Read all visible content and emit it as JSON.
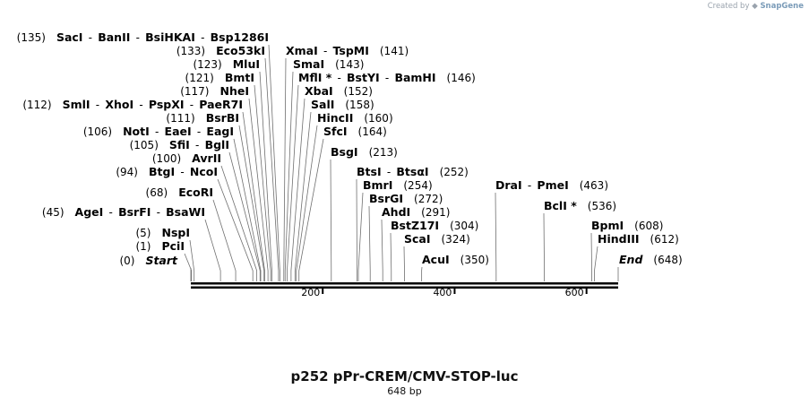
{
  "credit": {
    "prefix": "Created by",
    "brand": "SnapGene"
  },
  "title": "p252 pPr-CREM/CMV-STOP-luc",
  "subtitle": "648 bp",
  "map": {
    "length": 648,
    "ticks": [
      200,
      400,
      600
    ]
  },
  "features": [
    {
      "pos": 135,
      "names": [
        "SacI",
        "BanII",
        "BsiHKAI",
        "Bsp1286I"
      ],
      "side": "left"
    },
    {
      "pos": 133,
      "names": [
        "Eco53kI"
      ],
      "side": "left"
    },
    {
      "pos": 123,
      "names": [
        "MluI"
      ],
      "side": "left"
    },
    {
      "pos": 121,
      "names": [
        "BmtI"
      ],
      "side": "left"
    },
    {
      "pos": 117,
      "names": [
        "NheI"
      ],
      "side": "left"
    },
    {
      "pos": 112,
      "names": [
        "SmlI",
        "XhoI",
        "PspXI",
        "PaeR7I"
      ],
      "side": "left"
    },
    {
      "pos": 111,
      "names": [
        "BsrBI"
      ],
      "side": "left"
    },
    {
      "pos": 106,
      "names": [
        "NotI",
        "EaeI",
        "EagI"
      ],
      "side": "left"
    },
    {
      "pos": 105,
      "names": [
        "SfiI",
        "BglI"
      ],
      "side": "left"
    },
    {
      "pos": 100,
      "names": [
        "AvrII"
      ],
      "side": "left"
    },
    {
      "pos": 94,
      "names": [
        "BtgI",
        "NcoI"
      ],
      "side": "left"
    },
    {
      "pos": 68,
      "names": [
        "EcoRI"
      ],
      "side": "left"
    },
    {
      "pos": 45,
      "names": [
        "AgeI",
        "BsrFI",
        "BsaWI"
      ],
      "side": "left"
    },
    {
      "pos": 5,
      "names": [
        "NspI"
      ],
      "side": "left"
    },
    {
      "pos": 1,
      "names": [
        "PciI"
      ],
      "side": "left"
    },
    {
      "pos": 0,
      "names": [
        "Start"
      ],
      "side": "left",
      "italic": true
    },
    {
      "pos": 141,
      "names": [
        "XmaI",
        "TspMI"
      ],
      "side": "right"
    },
    {
      "pos": 143,
      "names": [
        "SmaI"
      ],
      "side": "right"
    },
    {
      "pos": 146,
      "names": [
        "MflI *",
        "BstYI",
        "BamHI"
      ],
      "side": "right"
    },
    {
      "pos": 152,
      "names": [
        "XbaI"
      ],
      "side": "right"
    },
    {
      "pos": 158,
      "names": [
        "SalI"
      ],
      "side": "right"
    },
    {
      "pos": 160,
      "names": [
        "HincII"
      ],
      "side": "right"
    },
    {
      "pos": 164,
      "names": [
        "SfcI"
      ],
      "side": "right"
    },
    {
      "pos": 213,
      "names": [
        "BsgI"
      ],
      "side": "right"
    },
    {
      "pos": 252,
      "names": [
        "BtsI",
        "BtsαI"
      ],
      "side": "right"
    },
    {
      "pos": 254,
      "names": [
        "BmrI"
      ],
      "side": "right"
    },
    {
      "pos": 272,
      "names": [
        "BsrGI"
      ],
      "side": "right"
    },
    {
      "pos": 291,
      "names": [
        "AhdI"
      ],
      "side": "right"
    },
    {
      "pos": 304,
      "names": [
        "BstZ17I"
      ],
      "side": "right"
    },
    {
      "pos": 324,
      "names": [
        "ScaI"
      ],
      "side": "right"
    },
    {
      "pos": 350,
      "names": [
        "AcuI"
      ],
      "side": "right"
    },
    {
      "pos": 463,
      "names": [
        "DraI",
        "PmeI"
      ],
      "side": "right"
    },
    {
      "pos": 536,
      "names": [
        "BclI *"
      ],
      "side": "right"
    },
    {
      "pos": 608,
      "names": [
        "BpmI"
      ],
      "side": "right"
    },
    {
      "pos": 612,
      "names": [
        "HindIII"
      ],
      "side": "right"
    },
    {
      "pos": 648,
      "names": [
        "End"
      ],
      "side": "right",
      "italic": true
    }
  ]
}
